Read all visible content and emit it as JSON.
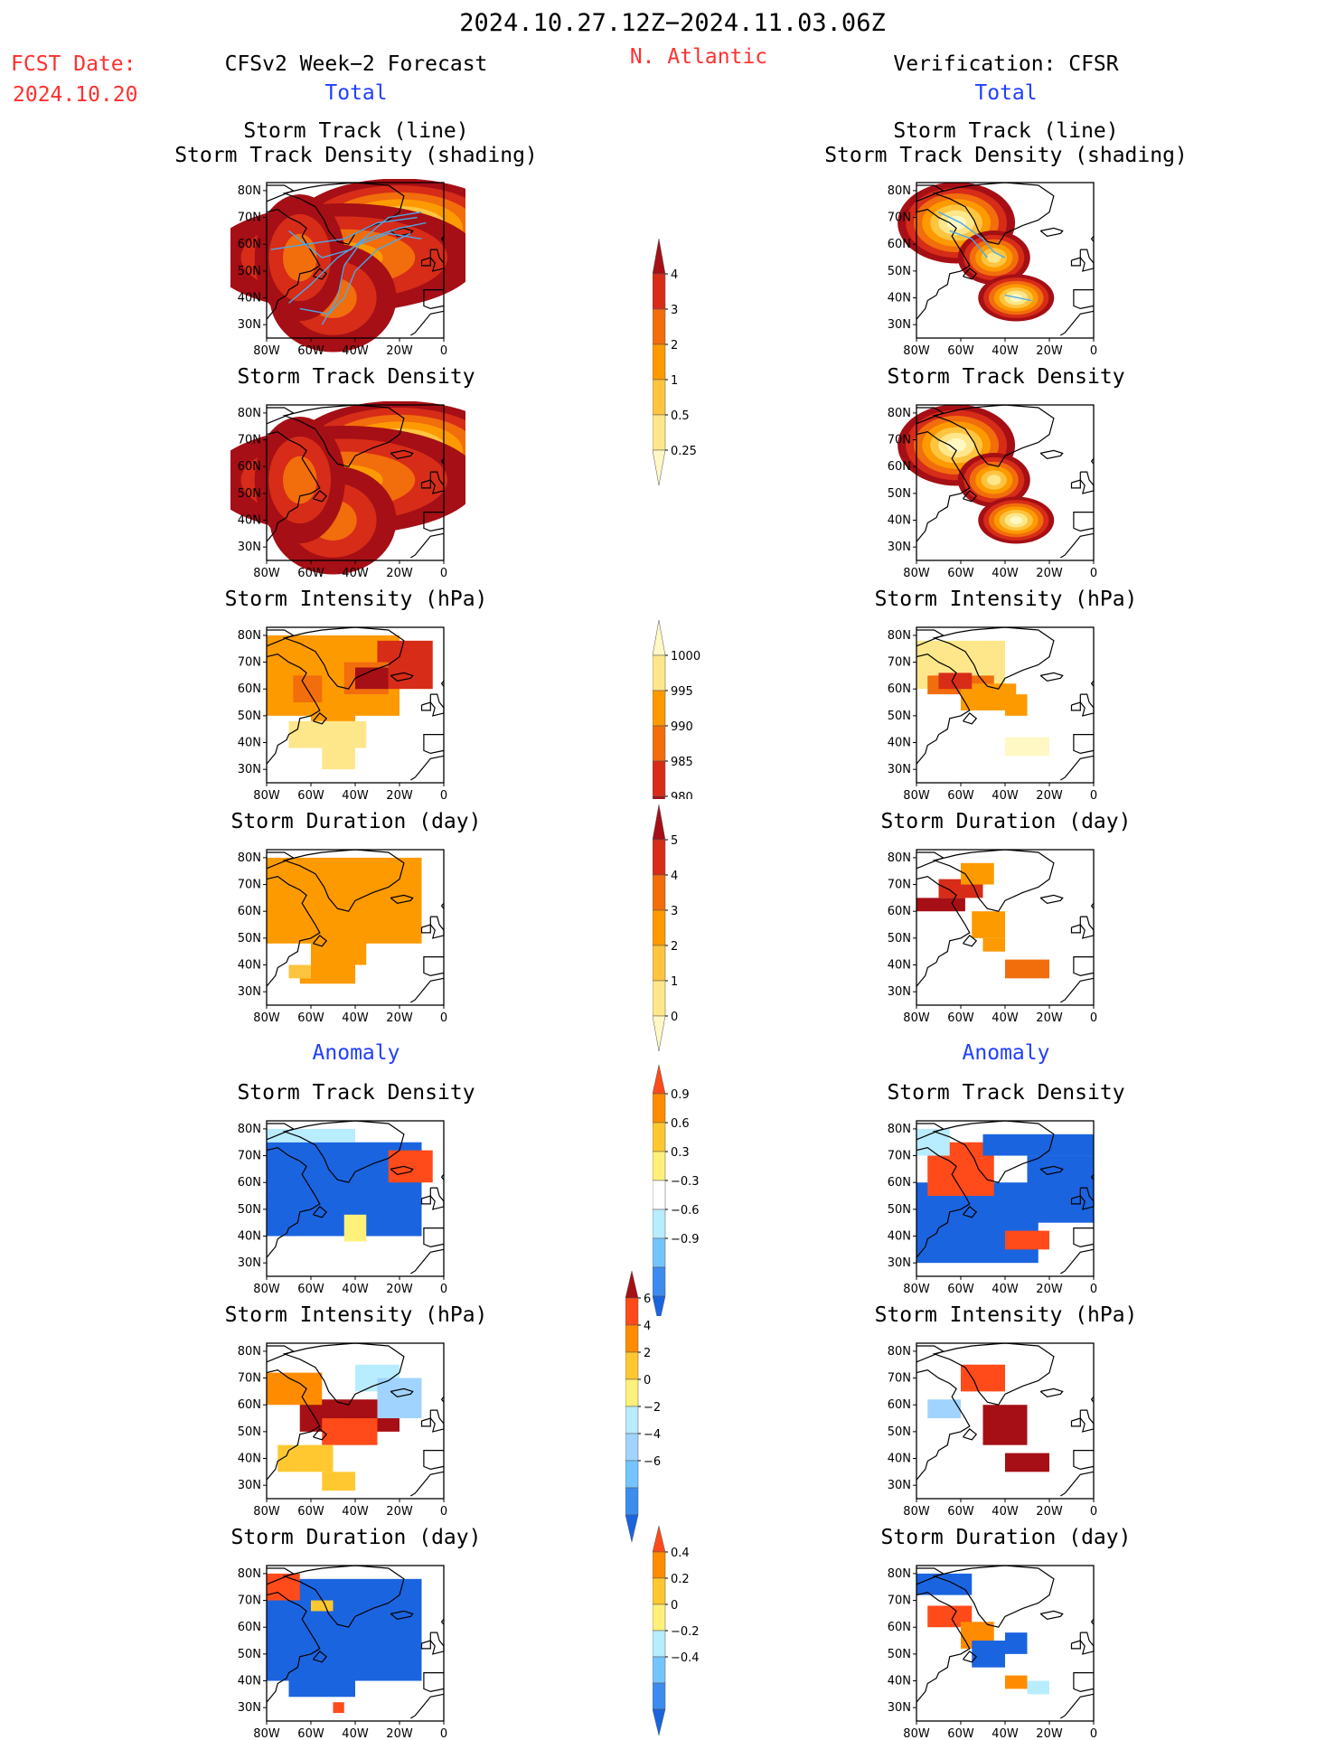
{
  "header": {
    "period": "2024.10.27.12Z−2024.11.03.06Z",
    "fcst_label": "FCST Date:",
    "fcst_date": "2024.10.20",
    "region": "N. Atlantic",
    "left_title": "CFSv2 Week−2 Forecast",
    "right_title": "Verification: CFSR",
    "total_label": "Total",
    "anomaly_label": "Anomaly"
  },
  "colors": {
    "title_red": "#ff3030",
    "subtitle_blue": "#2040ff",
    "track_line": "#4fa8e8",
    "land_outline": "#000000"
  },
  "chart_data": [
    {
      "type": "heatmap",
      "panel": "forecast-total-track",
      "title": [
        "Storm Track (line)",
        "Storm Track Density (shading)"
      ],
      "x_ticks": [
        "80W",
        "60W",
        "40W",
        "20W",
        "0"
      ],
      "y_ticks": [
        "80N",
        "70N",
        "60N",
        "50N",
        "40N",
        "30N"
      ],
      "colorbar": "density"
    },
    {
      "type": "heatmap",
      "panel": "verification-total-track",
      "title": [
        "Storm Track (line)",
        "Storm Track Density (shading)"
      ],
      "x_ticks": [
        "80W",
        "60W",
        "40W",
        "20W",
        "0"
      ],
      "y_ticks": [
        "80N",
        "70N",
        "60N",
        "50N",
        "40N",
        "30N"
      ],
      "colorbar": "density"
    },
    {
      "type": "heatmap",
      "panel": "forecast-total-density",
      "title": [
        "Storm Track Density"
      ],
      "x_ticks": [
        "80W",
        "60W",
        "40W",
        "20W",
        "0"
      ],
      "y_ticks": [
        "80N",
        "70N",
        "60N",
        "50N",
        "40N",
        "30N"
      ],
      "colorbar": "density"
    },
    {
      "type": "heatmap",
      "panel": "verification-total-density",
      "title": [
        "Storm Track Density"
      ],
      "x_ticks": [
        "80W",
        "60W",
        "40W",
        "20W",
        "0"
      ],
      "y_ticks": [
        "80N",
        "70N",
        "60N",
        "50N",
        "40N",
        "30N"
      ],
      "colorbar": "density"
    },
    {
      "type": "heatmap",
      "panel": "forecast-total-intensity",
      "title": [
        "Storm Intensity (hPa)"
      ],
      "x_ticks": [
        "80W",
        "60W",
        "40W",
        "20W",
        "0"
      ],
      "y_ticks": [
        "80N",
        "70N",
        "60N",
        "50N",
        "40N",
        "30N"
      ],
      "colorbar": "intensity"
    },
    {
      "type": "heatmap",
      "panel": "verification-total-intensity",
      "title": [
        "Storm Intensity (hPa)"
      ],
      "x_ticks": [
        "80W",
        "60W",
        "40W",
        "20W",
        "0"
      ],
      "y_ticks": [
        "80N",
        "70N",
        "60N",
        "50N",
        "40N",
        "30N"
      ],
      "colorbar": "intensity"
    },
    {
      "type": "heatmap",
      "panel": "forecast-total-duration",
      "title": [
        "Storm Duration (day)"
      ],
      "x_ticks": [
        "80W",
        "60W",
        "40W",
        "20W",
        "0"
      ],
      "y_ticks": [
        "80N",
        "70N",
        "60N",
        "50N",
        "40N",
        "30N"
      ],
      "colorbar": "duration"
    },
    {
      "type": "heatmap",
      "panel": "verification-total-duration",
      "title": [
        "Storm Duration (day)"
      ],
      "x_ticks": [
        "80W",
        "60W",
        "40W",
        "20W",
        "0"
      ],
      "y_ticks": [
        "80N",
        "70N",
        "60N",
        "50N",
        "40N",
        "30N"
      ],
      "colorbar": "duration"
    },
    {
      "type": "heatmap",
      "panel": "forecast-anomaly-density",
      "title": [
        "Storm Track Density"
      ],
      "x_ticks": [
        "80W",
        "60W",
        "40W",
        "20W",
        "0"
      ],
      "y_ticks": [
        "80N",
        "70N",
        "60N",
        "50N",
        "40N",
        "30N"
      ],
      "colorbar": "anom_density"
    },
    {
      "type": "heatmap",
      "panel": "verification-anomaly-density",
      "title": [
        "Storm Track Density"
      ],
      "x_ticks": [
        "80W",
        "60W",
        "40W",
        "20W",
        "0"
      ],
      "y_ticks": [
        "80N",
        "70N",
        "60N",
        "50N",
        "40N",
        "30N"
      ],
      "colorbar": "anom_density"
    },
    {
      "type": "heatmap",
      "panel": "forecast-anomaly-intensity",
      "title": [
        "Storm Intensity (hPa)"
      ],
      "x_ticks": [
        "80W",
        "60W",
        "40W",
        "20W",
        "0"
      ],
      "y_ticks": [
        "80N",
        "70N",
        "60N",
        "50N",
        "40N",
        "30N"
      ],
      "colorbar": "anom_intensity"
    },
    {
      "type": "heatmap",
      "panel": "verification-anomaly-intensity",
      "title": [
        "Storm Intensity (hPa)"
      ],
      "x_ticks": [
        "80W",
        "60W",
        "40W",
        "20W",
        "0"
      ],
      "y_ticks": [
        "80N",
        "70N",
        "60N",
        "50N",
        "40N",
        "30N"
      ],
      "colorbar": "anom_intensity"
    },
    {
      "type": "heatmap",
      "panel": "forecast-anomaly-duration",
      "title": [
        "Storm Duration (day)"
      ],
      "x_ticks": [
        "80W",
        "60W",
        "40W",
        "20W",
        "0"
      ],
      "y_ticks": [
        "80N",
        "70N",
        "60N",
        "50N",
        "40N",
        "30N"
      ],
      "colorbar": "anom_duration"
    },
    {
      "type": "heatmap",
      "panel": "verification-anomaly-duration",
      "title": [
        "Storm Duration (day)"
      ],
      "x_ticks": [
        "80W",
        "60W",
        "40W",
        "20W",
        "0"
      ],
      "y_ticks": [
        "80N",
        "70N",
        "60N",
        "50N",
        "40N",
        "30N"
      ],
      "colorbar": "anom_duration"
    }
  ],
  "colorbars": {
    "density": {
      "labels": [
        "4",
        "3",
        "2",
        "1",
        "0.5",
        "0.25"
      ],
      "colors": [
        "#a50f15",
        "#d62c18",
        "#f26d0c",
        "#fd9a00",
        "#fdc440",
        "#fde78a",
        "#fff8c4"
      ]
    },
    "intensity": {
      "labels": [
        "1000",
        "995",
        "990",
        "985",
        "980"
      ],
      "colors": [
        "#fff8c4",
        "#fde78a",
        "#fd9a00",
        "#f26d0c",
        "#d62c18",
        "#a50f15"
      ]
    },
    "duration": {
      "labels": [
        "5",
        "4",
        "3",
        "2",
        "1",
        "0"
      ],
      "colors": [
        "#a50f15",
        "#d62c18",
        "#f26d0c",
        "#fd9a00",
        "#fdc440",
        "#fde78a",
        "#fff8c4"
      ]
    },
    "anom_density": {
      "labels": [
        "0.9",
        "0.6",
        "0.3",
        "−0.3",
        "−0.6",
        "−0.9"
      ],
      "colors": [
        "#ff4a1a",
        "#ff8c00",
        "#ffc830",
        "#fff07a",
        "#ffffff",
        "#b8ecff",
        "#74c4ff",
        "#3c8cf0",
        "#1a64e0"
      ]
    },
    "anom_intensity": {
      "labels": [
        "6",
        "4",
        "2",
        "0",
        "−2",
        "−4",
        "−6"
      ],
      "colors": [
        "#a50f15",
        "#ff4a1a",
        "#ff8c00",
        "#ffc830",
        "#fff07a",
        "#b8ecff",
        "#a0d4ff",
        "#74c4ff",
        "#3c8cf0",
        "#1a64e0"
      ]
    },
    "anom_duration": {
      "labels": [
        "0.4",
        "0.2",
        "0",
        "−0.2",
        "−0.4"
      ],
      "colors": [
        "#ff4a1a",
        "#ff8c00",
        "#ffc830",
        "#fff07a",
        "#b8ecff",
        "#74c4ff",
        "#3c8cf0",
        "#1a64e0"
      ]
    }
  }
}
